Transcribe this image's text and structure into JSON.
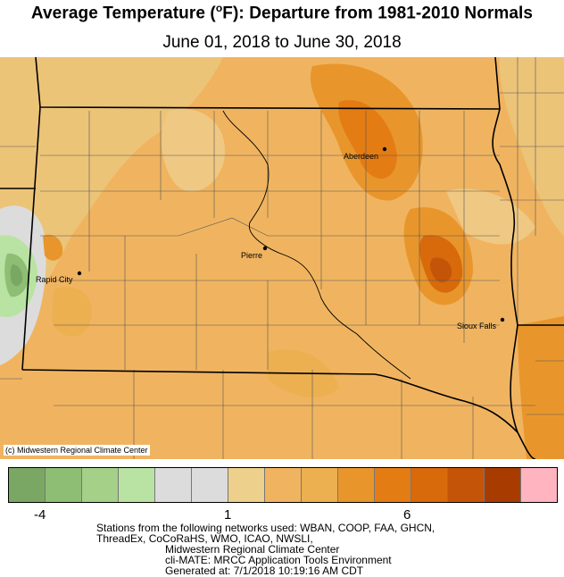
{
  "header": {
    "title_main": "Average Temperature (",
    "title_deg": "o",
    "title_rest": "F): Departure from 1981-2010 Normals",
    "subtitle": "June 01, 2018 to June 30, 2018"
  },
  "map": {
    "credit": "(c) Midwestern Regional Climate Center",
    "cities": [
      {
        "name": "Aberdeen"
      },
      {
        "name": "Pierre"
      },
      {
        "name": "Rapid City"
      },
      {
        "name": "Sioux Falls"
      }
    ]
  },
  "legend": {
    "colors": [
      "#7aa864",
      "#8ebe74",
      "#a4d088",
      "#b9e3a2",
      "#dcdcdc",
      "#dcdcdc",
      "#ecd08c",
      "#f0b460",
      "#ecb050",
      "#e8962c",
      "#e47c14",
      "#d86a0c",
      "#c45408",
      "#a83c00",
      "#ffb4c0"
    ],
    "tick_labels": [
      "-4",
      "1",
      "6"
    ]
  },
  "footer": {
    "line1": "Stations from the following networks used: WBAN, COOP, FAA, GHCN,",
    "line2": "ThreadEx, CoCoRaHS, WMO, ICAO, NWSLI,",
    "line3": "Midwestern Regional Climate Center",
    "line4": "cli-MATE: MRCC Application Tools Environment",
    "line5": "Generated at: 7/1/2018 10:19:16 AM CDT"
  }
}
